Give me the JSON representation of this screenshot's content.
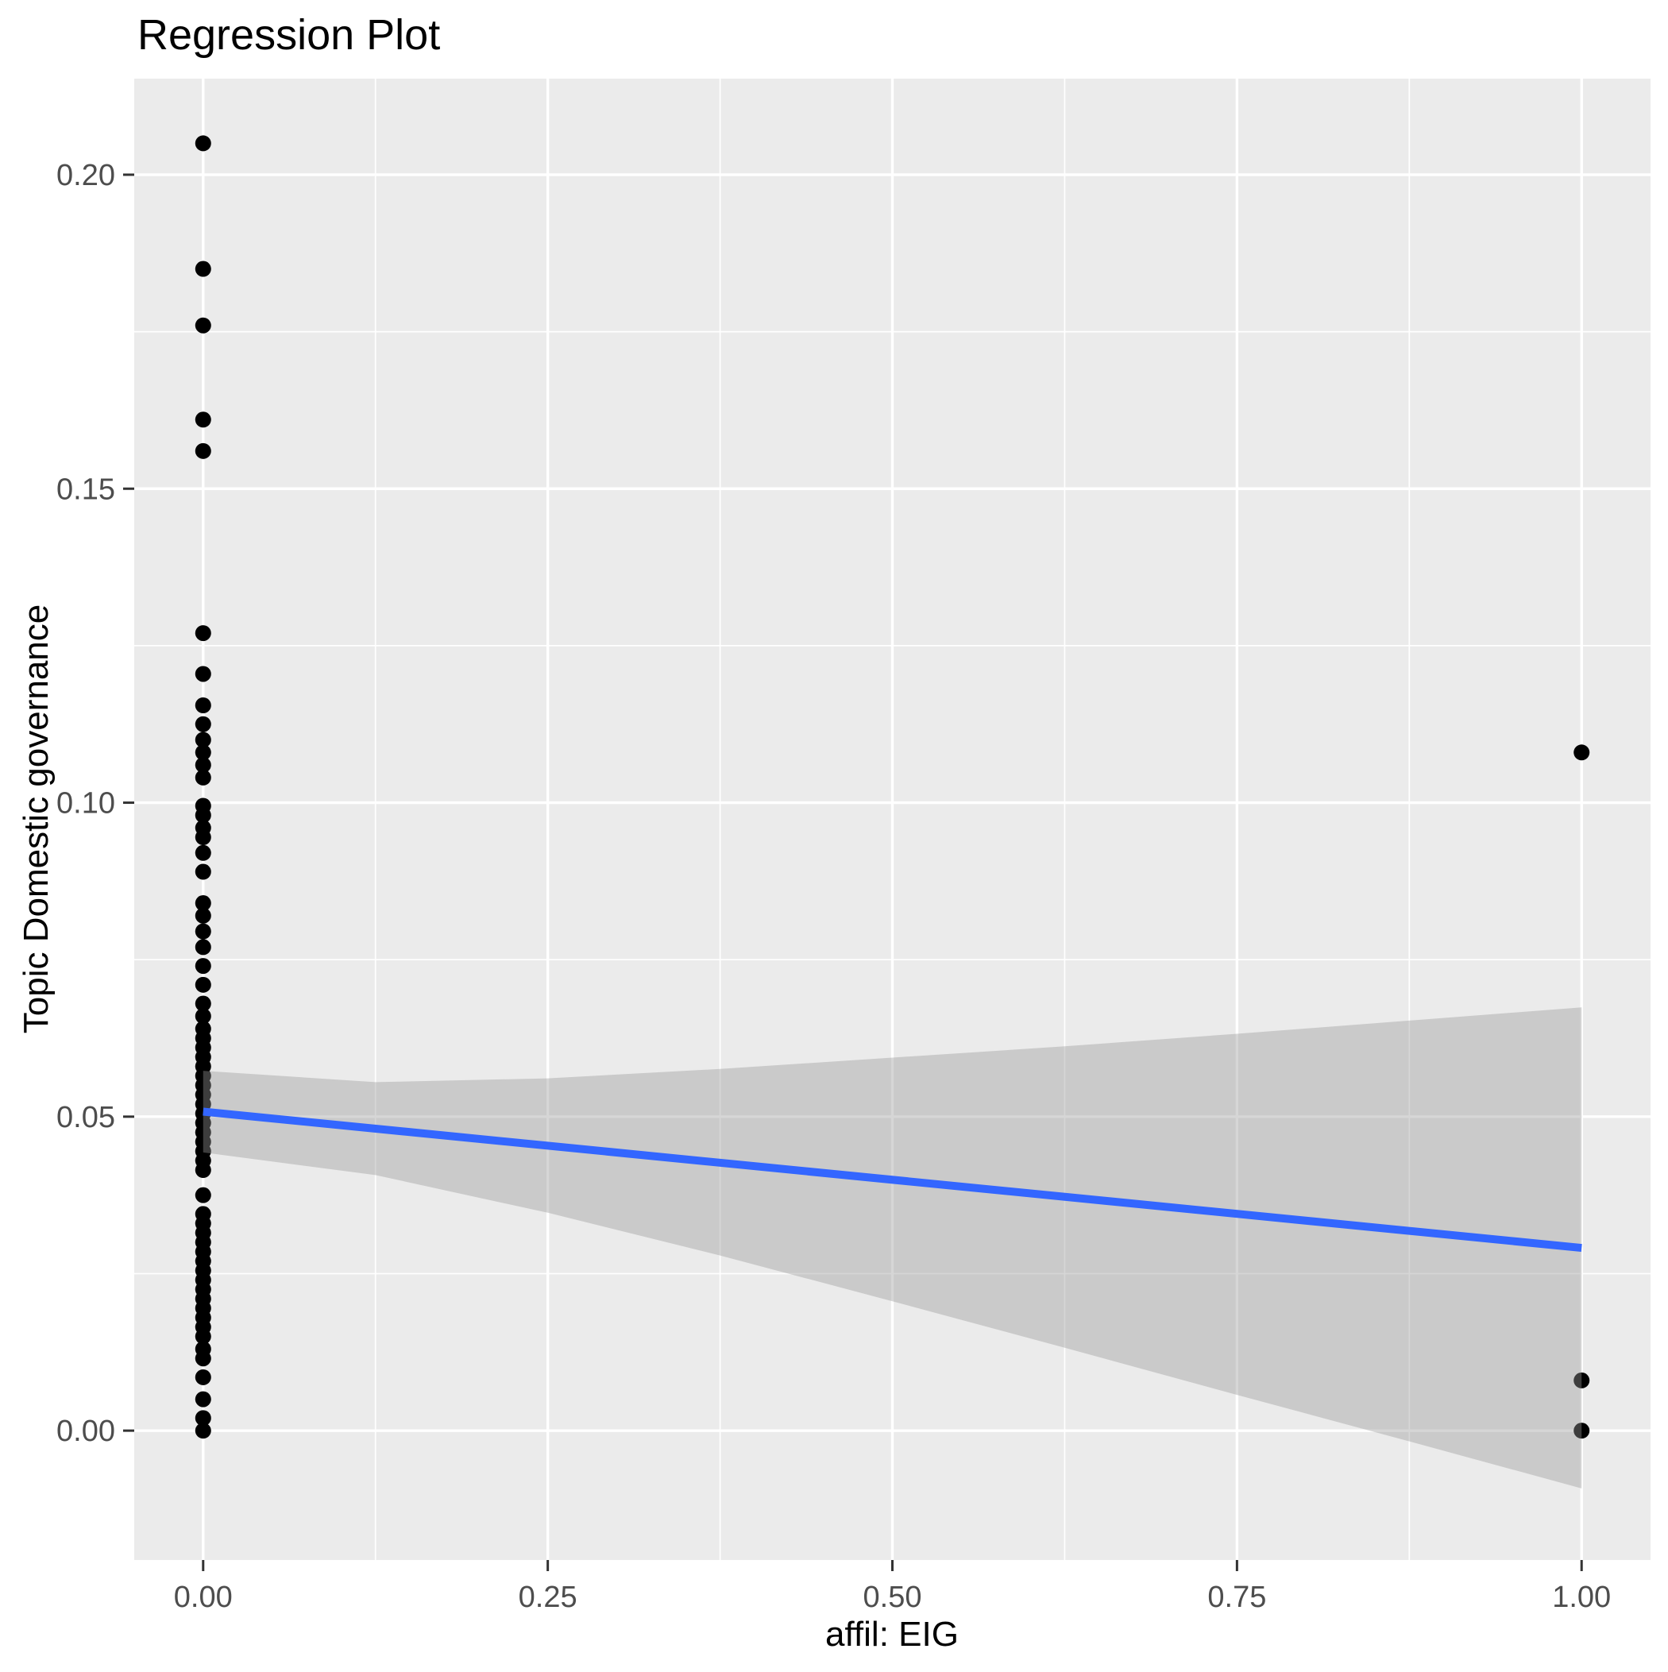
{
  "chart_data": {
    "type": "scatter",
    "title": "Regression Plot",
    "xlabel": "affil: EIG",
    "ylabel": "Topic Domestic governance",
    "xlim": [
      -0.05,
      1.05
    ],
    "ylim": [
      -0.0206,
      0.2153
    ],
    "grid": "on",
    "legend_position": "none",
    "x_ticks": {
      "values": [
        0,
        0.25,
        0.5,
        0.75,
        1.0
      ],
      "labels": [
        "0.00",
        "0.25",
        "0.50",
        "0.75",
        "1.00"
      ]
    },
    "y_ticks": {
      "values": [
        0,
        0.05,
        0.1,
        0.15,
        0.2
      ],
      "labels": [
        "0.00",
        "0.05",
        "0.10",
        "0.15",
        "0.20"
      ]
    },
    "x_minor_gridlines": [
      0.125,
      0.375,
      0.625,
      0.875
    ],
    "y_minor_gridlines": [
      0.025,
      0.075,
      0.125,
      0.175
    ],
    "scatter_series": [
      {
        "name": "affil EIG = 0",
        "x": 0,
        "y_values": [
          0.205,
          0.185,
          0.176,
          0.161,
          0.156,
          0.127,
          0.1205,
          0.1155,
          0.1125,
          0.11,
          0.108,
          0.106,
          0.104,
          0.0995,
          0.098,
          0.096,
          0.0945,
          0.092,
          0.089,
          0.084,
          0.082,
          0.0795,
          0.077,
          0.074,
          0.071,
          0.068,
          0.066,
          0.064,
          0.0625,
          0.061,
          0.0595,
          0.058,
          0.0565,
          0.055,
          0.0535,
          0.052,
          0.0505,
          0.049,
          0.0475,
          0.046,
          0.0445,
          0.043,
          0.0415,
          0.0375,
          0.0345,
          0.033,
          0.0315,
          0.03,
          0.0285,
          0.027,
          0.0255,
          0.024,
          0.0225,
          0.021,
          0.0195,
          0.018,
          0.0165,
          0.015,
          0.013,
          0.0115,
          0.0085,
          0.005,
          0.002,
          0.0
        ]
      },
      {
        "name": "affil EIG = 1",
        "x": 1,
        "y_values": [
          0.108,
          0.008,
          0.0
        ]
      }
    ],
    "regression_line": {
      "x": [
        0,
        1
      ],
      "y": [
        0.0508,
        0.0291
      ]
    },
    "confidence_band": {
      "x": [
        0,
        0.125,
        0.25,
        0.375,
        0.5,
        0.625,
        0.75,
        0.875,
        1.0
      ],
      "upper": [
        0.0573,
        0.0555,
        0.0561,
        0.0576,
        0.0594,
        0.0612,
        0.0632,
        0.0653,
        0.0674
      ],
      "lower": [
        0.0443,
        0.0407,
        0.0347,
        0.0279,
        0.0206,
        0.0132,
        0.0057,
        -0.0017,
        -0.0092
      ]
    },
    "colors": {
      "point": "#000000",
      "regression_line": "#3366FF",
      "confidence_band": "rgba(153,153,153,0.40)",
      "panel_background": "#EBEBEB",
      "gridline": "#FFFFFF",
      "tick_text": "#4D4D4D",
      "tick_mark": "#333333",
      "title_text": "#000000"
    }
  }
}
